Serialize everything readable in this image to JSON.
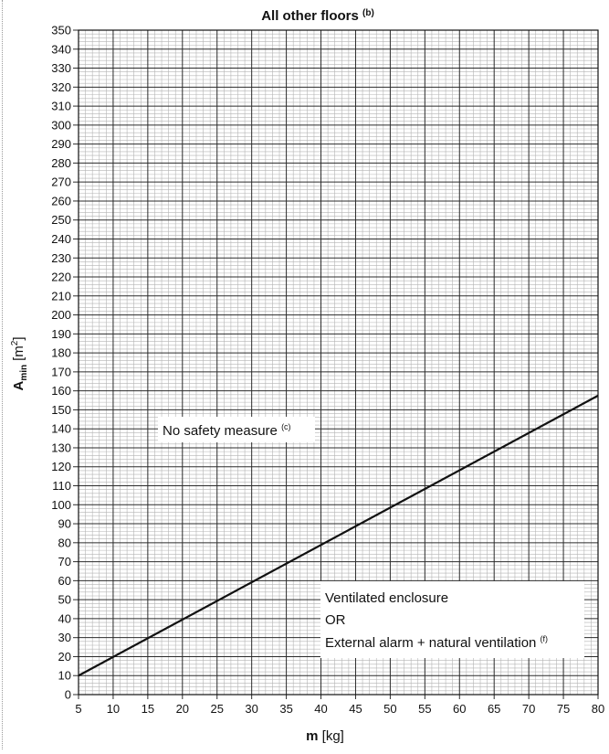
{
  "chart_data": {
    "type": "line",
    "title": "All other floors",
    "title_note": "(b)",
    "xlabel": "m",
    "xlabel_unit": "[kg]",
    "ylabel": "A",
    "ylabel_sub": "min",
    "ylabel_unit_pre": "[m",
    "ylabel_unit_sup": "2",
    "ylabel_unit_post": "]",
    "xlim": [
      5,
      80
    ],
    "ylim": [
      0,
      350
    ],
    "x_ticks": [
      5,
      10,
      15,
      20,
      25,
      30,
      35,
      40,
      45,
      50,
      55,
      60,
      65,
      70,
      75,
      80
    ],
    "y_ticks": [
      0,
      10,
      20,
      30,
      40,
      50,
      60,
      70,
      80,
      90,
      100,
      110,
      120,
      130,
      140,
      150,
      160,
      170,
      180,
      190,
      200,
      210,
      220,
      230,
      240,
      250,
      260,
      270,
      280,
      290,
      300,
      310,
      320,
      330,
      340,
      350
    ],
    "grid": true,
    "series": [
      {
        "x": [
          5,
          80
        ],
        "y": [
          10,
          157.5
        ]
      }
    ],
    "annotations": {
      "upper_region": {
        "text": "No safety measure",
        "note": "(c)"
      },
      "lower_region": {
        "line1": "Ventilated enclosure",
        "line2": "OR",
        "line3": "External alarm + natural ventilation",
        "line3_note": "(f)"
      }
    }
  },
  "colors": {
    "line": "#111111",
    "major_grid": "#2b2b2b",
    "minor_grid": "#b4b4b4",
    "text": "#111111"
  }
}
